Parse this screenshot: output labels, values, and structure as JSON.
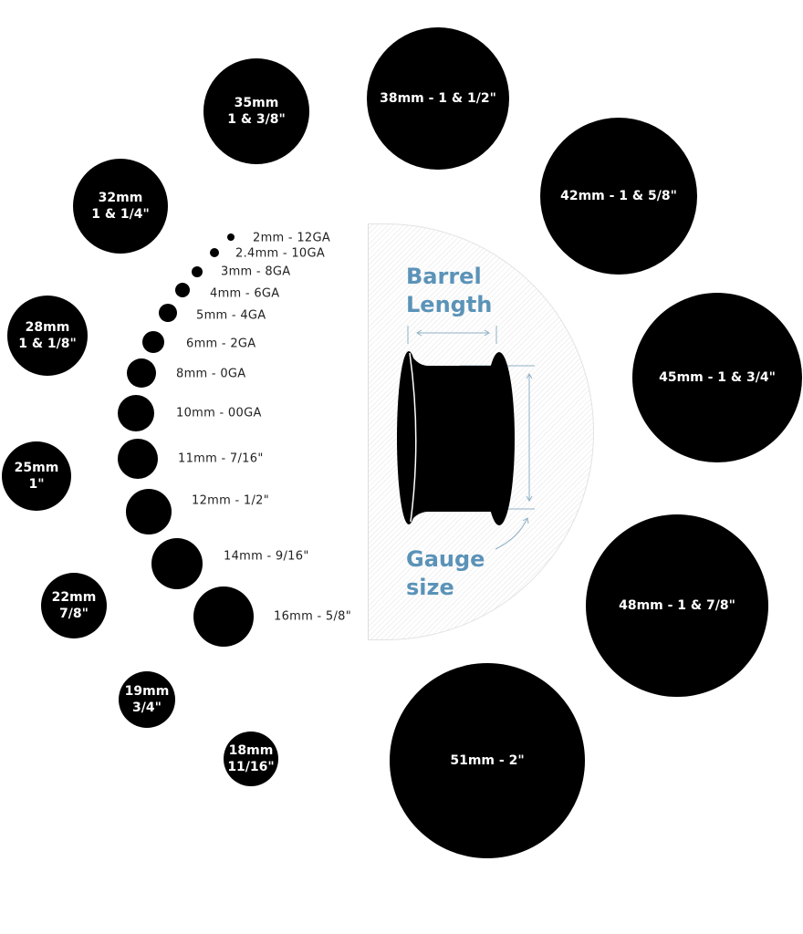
{
  "small_sizes": [
    {
      "label": "2mm - 12GA"
    },
    {
      "label": "2.4mm - 10GA"
    },
    {
      "label": "3mm - 8GA"
    },
    {
      "label": "4mm - 6GA"
    },
    {
      "label": "5mm - 4GA"
    },
    {
      "label": "6mm - 2GA"
    },
    {
      "label": "8mm - 0GA"
    },
    {
      "label": "10mm - 00GA"
    },
    {
      "label": "11mm - 7/16\""
    },
    {
      "label": "12mm - 1/2\""
    },
    {
      "label": "14mm - 9/16\""
    },
    {
      "label": "16mm - 5/8\""
    }
  ],
  "large_sizes": [
    {
      "line1": "35mm",
      "line2": "1 & 3/8\""
    },
    {
      "line1": "38mm - 1 & 1/2\"",
      "line2": ""
    },
    {
      "line1": "32mm",
      "line2": "1 & 1/4\""
    },
    {
      "line1": "42mm - 1 & 5/8\"",
      "line2": ""
    },
    {
      "line1": "28mm",
      "line2": "1 & 1/8\""
    },
    {
      "line1": "45mm - 1 & 3/4\"",
      "line2": ""
    },
    {
      "line1": "25mm",
      "line2": "1\""
    },
    {
      "line1": "22mm",
      "line2": "7/8\""
    },
    {
      "line1": "48mm - 1 & 7/8\"",
      "line2": ""
    },
    {
      "line1": "19mm",
      "line2": "3/4\""
    },
    {
      "line1": "18mm",
      "line2": "11/16\""
    },
    {
      "line1": "51mm - 2\"",
      "line2": ""
    }
  ],
  "diagram": {
    "barrel_line1": "Barrel",
    "barrel_line2": "Length",
    "gauge_line1": "Gauge",
    "gauge_line2": "size",
    "accent_color": "#5b93b8"
  }
}
